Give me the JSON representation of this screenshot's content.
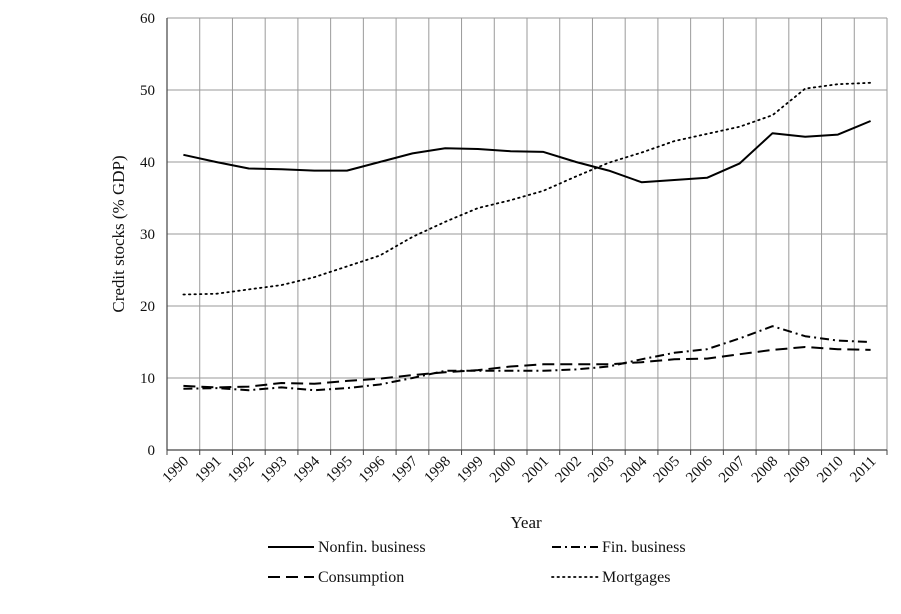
{
  "chart_data": {
    "type": "line",
    "title": "",
    "xlabel": "Year",
    "ylabel": "Credit stocks (% GDP)",
    "ylim": [
      0,
      60
    ],
    "yticks": [
      0,
      10,
      20,
      30,
      40,
      50,
      60
    ],
    "grid": "vertical and horizontal",
    "legend_position": "bottom",
    "categories": [
      "1990",
      "1991",
      "1992",
      "1993",
      "1994",
      "1995",
      "1996",
      "1997",
      "1998",
      "1999",
      "2000",
      "2001",
      "2002",
      "2003",
      "2004",
      "2005",
      "2006",
      "2007",
      "2008",
      "2009",
      "2010",
      "2011"
    ],
    "series": [
      {
        "name": "Nonfin. business",
        "style": "solid",
        "values": [
          41.0,
          40.0,
          39.1,
          39.0,
          38.8,
          38.8,
          40.0,
          41.2,
          41.9,
          41.8,
          41.5,
          41.4,
          40.0,
          38.8,
          37.2,
          37.5,
          37.8,
          39.8,
          44.0,
          43.5,
          43.8,
          45.7
        ]
      },
      {
        "name": "Fin. business",
        "style": "dashdot",
        "values": [
          8.5,
          8.6,
          8.3,
          8.7,
          8.3,
          8.6,
          9.1,
          10.0,
          11.0,
          11.0,
          11.0,
          11.0,
          11.2,
          11.6,
          12.6,
          13.5,
          14.0,
          15.5,
          17.2,
          15.8,
          15.2,
          15.0
        ]
      },
      {
        "name": "Consumption",
        "style": "longdash",
        "values": [
          8.9,
          8.7,
          8.8,
          9.3,
          9.2,
          9.6,
          9.9,
          10.4,
          10.8,
          11.1,
          11.6,
          11.9,
          11.9,
          11.9,
          12.2,
          12.6,
          12.7,
          13.3,
          13.9,
          14.3,
          14.0,
          13.9
        ]
      },
      {
        "name": "Mortgages",
        "style": "dotted",
        "values": [
          21.6,
          21.7,
          22.3,
          22.9,
          24.0,
          25.5,
          27.0,
          29.6,
          31.7,
          33.6,
          34.7,
          36.0,
          38.0,
          39.9,
          41.3,
          42.9,
          43.9,
          44.9,
          46.5,
          50.2,
          50.8,
          51.0
        ]
      }
    ]
  }
}
